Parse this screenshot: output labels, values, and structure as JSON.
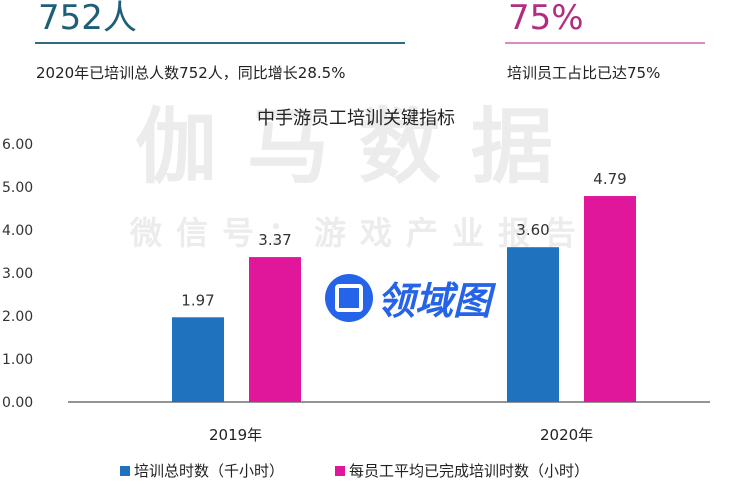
{
  "header": {
    "left": {
      "big": "752人",
      "text": "2020年已培训总人数752人，同比增长28.5%"
    },
    "right": {
      "big": "75%",
      "text": "培训员工占比已达75%"
    }
  },
  "watermark": {
    "main": "伽马数据",
    "sub": "微信号：游戏产业报告",
    "logo": "领域图"
  },
  "colors": {
    "blue": "#1f72bd",
    "pink": "#e0179b",
    "left_accent": "#1e5f78",
    "right_accent": "#b22d80"
  },
  "chart_data": {
    "type": "bar",
    "title": "中手游员工培训关键指标",
    "categories": [
      "2019年",
      "2020年"
    ],
    "series": [
      {
        "name": "培训总时数（千小时）",
        "values": [
          1.97,
          3.6
        ],
        "labels": [
          "1.97",
          "3.60"
        ]
      },
      {
        "name": "每员工平均已完成培训时数（小时）",
        "values": [
          3.37,
          4.79
        ],
        "labels": [
          "3.37",
          "4.79"
        ]
      }
    ],
    "yticks": [
      "0.00",
      "1.00",
      "2.00",
      "3.00",
      "4.00",
      "5.00",
      "6.00"
    ],
    "ylim": [
      0,
      6
    ],
    "legend": "bottom"
  }
}
